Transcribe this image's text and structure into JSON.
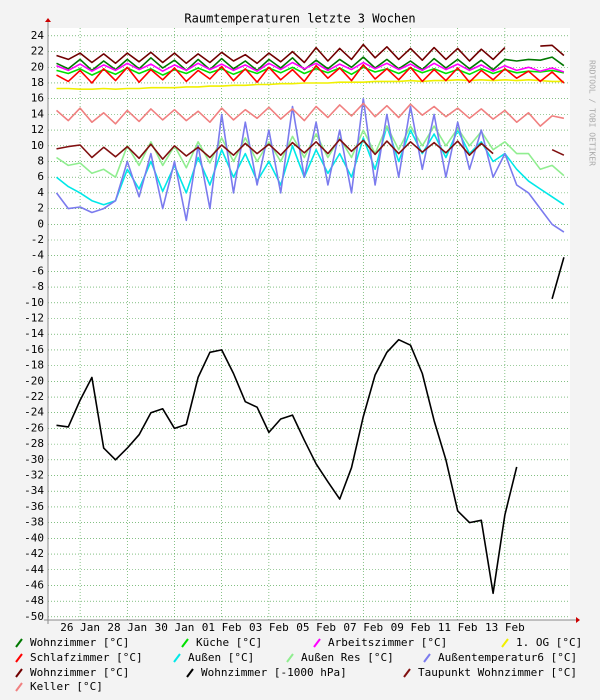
{
  "chart_data": {
    "type": "line",
    "title": "Raumtemperaturen letzte 3 Wochen",
    "watermark": "RRDTOOL / TOBI OETIKER",
    "xlim": [
      -1.36,
      20.76
    ],
    "xticks": [
      {
        "value": 0,
        "label": "26 Jan"
      },
      {
        "value": 2,
        "label": "28 Jan"
      },
      {
        "value": 4,
        "label": "30 Jan"
      },
      {
        "value": 6,
        "label": "01 Feb"
      },
      {
        "value": 8,
        "label": "03 Feb"
      },
      {
        "value": 10,
        "label": "05 Feb"
      },
      {
        "value": 12,
        "label": "07 Feb"
      },
      {
        "value": 14,
        "label": "09 Feb"
      },
      {
        "value": 16,
        "label": "11 Feb"
      },
      {
        "value": 18,
        "label": "13 Feb"
      }
    ],
    "ylim": [
      -50.4,
      25
    ],
    "yticks": [
      -50,
      -48,
      -46,
      -44,
      -42,
      -40,
      -38,
      -36,
      -34,
      -32,
      -30,
      -28,
      -26,
      -24,
      -22,
      -20,
      -18,
      -16,
      -14,
      -12,
      -10,
      -8,
      -6,
      -4,
      -2,
      0,
      2,
      4,
      6,
      8,
      10,
      12,
      14,
      16,
      18,
      20,
      22,
      24
    ],
    "grid": true,
    "x": [
      -1,
      -0.5,
      0,
      0.5,
      1,
      1.5,
      2,
      2.5,
      3,
      3.5,
      4,
      4.5,
      5,
      5.5,
      6,
      6.5,
      7,
      7.5,
      8,
      8.5,
      9,
      9.5,
      10,
      10.5,
      11,
      11.5,
      12,
      12.5,
      13,
      13.5,
      14,
      14.5,
      15,
      15.5,
      16,
      16.5,
      17,
      17.5,
      18,
      18.5,
      19,
      19.5,
      20,
      20.5
    ],
    "series": [
      {
        "name": "Wohnzimmer [°C]",
        "color": "#007800",
        "values": [
          20.5,
          19.8,
          21,
          19.6,
          20.8,
          19.7,
          21,
          19.8,
          21.2,
          19.9,
          20.9,
          19.6,
          21,
          19.7,
          21.1,
          19.8,
          20.8,
          19.6,
          21,
          19.9,
          21.2,
          19.7,
          20.9,
          19.8,
          21,
          20,
          21.3,
          19.9,
          21,
          19.8,
          20.8,
          19.7,
          21.1,
          19.9,
          21,
          19.8,
          20.9,
          19.7,
          21,
          20.8,
          21,
          20.9,
          21.3,
          20.2
        ]
      },
      {
        "name": "Küche [°C]",
        "color": "#00e000",
        "values": [
          19.6,
          19.2,
          19.8,
          19,
          19.7,
          19.1,
          19.9,
          19.2,
          19.8,
          19,
          19.7,
          19.2,
          19.9,
          19.3,
          19.8,
          19.1,
          19.7,
          19.2,
          19.9,
          19.3,
          20,
          19.2,
          19.8,
          19.3,
          19.9,
          19.1,
          20,
          19.4,
          19.8,
          19.2,
          19.9,
          19.3,
          19.8,
          19.2,
          19.7,
          19.1,
          19.8,
          19.2,
          19.7,
          19.3,
          19.5,
          19.4,
          19.6,
          19.3
        ]
      },
      {
        "name": "Arbeitszimmer [°C]",
        "color": "#ff00ff",
        "values": [
          20.2,
          19.6,
          20.4,
          19.5,
          20.3,
          19.6,
          20.5,
          19.7,
          20.4,
          19.5,
          20.3,
          19.6,
          20.5,
          19.7,
          20.4,
          19.6,
          20.3,
          19.5,
          20.5,
          19.7,
          20.6,
          19.8,
          20.5,
          19.6,
          20.4,
          19.7,
          20.6,
          19.8,
          20.5,
          19.7,
          20.4,
          19.6,
          20.5,
          19.7,
          20.4,
          19.6,
          20.3,
          19.5,
          20.2,
          19.6,
          20,
          19.5,
          19.9,
          19.4
        ]
      },
      {
        "name": "1. OG [°C]",
        "color": "#f0f000",
        "values": [
          17.3,
          17.3,
          17.2,
          17.2,
          17.3,
          17.2,
          17.3,
          17.3,
          17.4,
          17.4,
          17.4,
          17.5,
          17.5,
          17.6,
          17.6,
          17.7,
          17.7,
          17.8,
          17.8,
          17.9,
          17.9,
          18,
          18,
          18,
          18.1,
          18.1,
          18.1,
          18.2,
          18.2,
          18.2,
          18.3,
          18.2,
          18.3,
          18.3,
          18.4,
          18.3,
          18.4,
          18.3,
          18.4,
          18.3,
          18.4,
          18.3,
          18.2,
          18.2
        ]
      },
      {
        "name": "Schlafzimmer [°C]",
        "color": "#ff0000",
        "values": [
          19,
          18.2,
          19.6,
          18,
          19.8,
          18.3,
          20,
          18.1,
          19.7,
          18.4,
          19.9,
          18.2,
          19.6,
          18.5,
          20.1,
          18.3,
          19.8,
          18.1,
          20,
          18.4,
          19.7,
          18.2,
          20.2,
          18.6,
          19.9,
          18.3,
          20.3,
          18.5,
          19.8,
          18.4,
          20,
          18.2,
          19.7,
          18.3,
          19.9,
          18.1,
          19.6,
          18.4,
          19.8,
          18.6,
          19.5,
          18.2,
          19.4,
          18
        ]
      },
      {
        "name": "Außen [°C]",
        "color": "#00e8e8",
        "values": [
          6,
          4.8,
          4,
          3,
          2.5,
          3,
          7,
          4.5,
          8,
          4.2,
          7.5,
          4,
          8.5,
          5,
          9.5,
          6,
          9,
          5.5,
          8,
          5,
          10,
          6,
          9.5,
          6.5,
          9,
          6,
          11,
          7,
          12.5,
          8,
          12,
          9,
          11.5,
          8.5,
          12,
          9,
          10.5,
          8,
          9,
          7,
          5.5,
          4.5,
          3.5,
          2.5
        ]
      },
      {
        "name": "Außen Res [°C]",
        "color": "#90ee90",
        "values": [
          8.5,
          7.5,
          7.8,
          6.5,
          7,
          6,
          10,
          7.5,
          10.5,
          7.5,
          10,
          7.2,
          10.5,
          7.8,
          11,
          8,
          11,
          8,
          10.5,
          8,
          11.2,
          8.5,
          11.5,
          8.5,
          11,
          8.5,
          12,
          9,
          12.5,
          9.5,
          12.5,
          10,
          12.5,
          10,
          12.2,
          10,
          11.8,
          9.5,
          10.5,
          9,
          9,
          7,
          7.5,
          6.2
        ]
      },
      {
        "name": "Außentemperatur6 [°C]",
        "color": "#7b7bee",
        "values": [
          4,
          2,
          2.2,
          1.5,
          2,
          3,
          8,
          3.5,
          9,
          2,
          8,
          0.5,
          10,
          2,
          14,
          4,
          13,
          5,
          12,
          4,
          15,
          6,
          13,
          5,
          12,
          4,
          16,
          5,
          14,
          6,
          15,
          7,
          14,
          6,
          13,
          7,
          12,
          6,
          9,
          5,
          4,
          2,
          0,
          -1
        ]
      },
      {
        "name": "Wohnzimmer [°C]",
        "color": "#700000",
        "values": [
          21.5,
          21,
          21.8,
          20.6,
          21.7,
          20.5,
          21.8,
          20.7,
          21.9,
          20.6,
          21.8,
          20.5,
          21.7,
          20.6,
          21.9,
          20.8,
          21.6,
          20.5,
          21.8,
          20.7,
          22,
          20.6,
          22.5,
          20.8,
          22.4,
          21,
          22.9,
          21.2,
          22.6,
          21,
          22.4,
          20.9,
          22.5,
          21,
          22.4,
          20.8,
          22.3,
          21,
          22.5,
          null,
          null,
          22.7,
          22.8,
          21.5
        ]
      },
      {
        "name": "Wohnzimmer [-1000 hPa]",
        "color": "#000000",
        "values": [
          -25.6,
          -25.8,
          -22.4,
          -19.5,
          -28.5,
          -30,
          -28.5,
          -26.8,
          -24,
          -23.5,
          -26,
          -25.5,
          -19.5,
          -16.3,
          -16,
          -19,
          -22.6,
          -23.3,
          -26.5,
          -24.8,
          -24.3,
          -27.5,
          -30.5,
          -32.8,
          -35,
          -31,
          -24.5,
          -19.2,
          -16.3,
          -14.7,
          -15.4,
          -19,
          -25,
          -30,
          -36.5,
          -38,
          -37.7,
          -47,
          -37,
          -30.9,
          null,
          null,
          -9.5,
          -4.2
        ]
      },
      {
        "name": "Taupunkt Wohnzimmer [°C]",
        "color": "#801010",
        "values": [
          9.6,
          9.9,
          10.1,
          8.5,
          9.8,
          8.6,
          9.9,
          8.4,
          10.2,
          8.3,
          10,
          8.7,
          9.8,
          8.5,
          10.1,
          8.8,
          10.3,
          9,
          10.2,
          8.8,
          10.4,
          9.1,
          10.5,
          9,
          10.8,
          9.3,
          10.7,
          8.9,
          10.6,
          9,
          10.5,
          9.2,
          10.4,
          9.1,
          10.6,
          8.8,
          10.3,
          9,
          null,
          null,
          null,
          null,
          9.5,
          8.8
        ]
      },
      {
        "name": "Keller [°C]",
        "color": "#f08080",
        "values": [
          14.5,
          13.2,
          14.8,
          13,
          14.2,
          12.8,
          14.5,
          13.1,
          14.7,
          13.3,
          14.6,
          13.2,
          14.4,
          13,
          14.8,
          13.3,
          14.6,
          13.5,
          14.9,
          13.4,
          14.7,
          13.2,
          15,
          13.6,
          15.2,
          13.8,
          15.4,
          13.7,
          15.1,
          13.6,
          15.3,
          13.9,
          15,
          13.7,
          14.8,
          13.5,
          14.7,
          13.4,
          14.5,
          13,
          14.2,
          12.5,
          13.8,
          13.5
        ]
      }
    ]
  }
}
